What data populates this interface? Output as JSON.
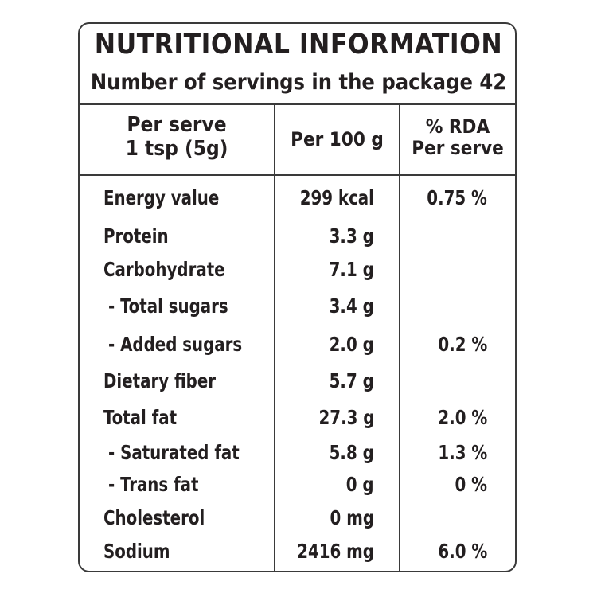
{
  "title": "NUTRITIONAL INFORMATION",
  "subtitle": "Number of servings in the package 42",
  "headers": {
    "serve_line1": "Per serve",
    "serve_line2": "1 tsp (5g)",
    "per100": "Per 100 g",
    "rda_line1": "% RDA",
    "rda_line2": "Per serve"
  },
  "rows": [
    {
      "name": "Energy value",
      "per100": "299 kcal",
      "rda": "0.75 %"
    },
    {
      "name": "Protein",
      "per100": "3.3 g",
      "rda": ""
    },
    {
      "name": "Carbohydrate",
      "per100": "7.1 g",
      "rda": ""
    },
    {
      "name": " - Total sugars",
      "per100": "3.4 g",
      "rda": ""
    },
    {
      "name": " - Added sugars",
      "per100": "2.0 g",
      "rda": "0.2 %"
    },
    {
      "name": "Dietary fiber",
      "per100": "5.7 g",
      "rda": ""
    },
    {
      "name": "Total fat",
      "per100": "27.3 g",
      "rda": "2.0 %"
    },
    {
      "name": " - Saturated fat",
      "per100": "5.8 g",
      "rda": "1.3 %"
    },
    {
      "name": " - Trans fat",
      "per100": "0 g",
      "rda": "0 %"
    },
    {
      "name": "Cholesterol",
      "per100": "0 mg",
      "rda": ""
    },
    {
      "name": "Sodium",
      "per100": "2416 mg",
      "rda": "6.0 %"
    }
  ]
}
